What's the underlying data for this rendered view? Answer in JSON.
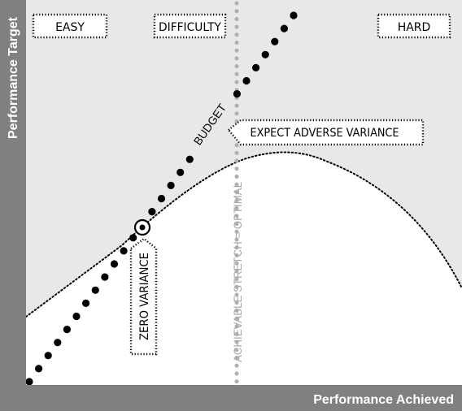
{
  "axes": {
    "y_label": "Performance Target",
    "x_label": "Performance Achieved"
  },
  "labels": {
    "easy": "EASY",
    "difficulty": "DIFFICULTY",
    "hard": "HARD",
    "budget": "BUDGET",
    "expect_adverse_variance": "EXPECT ADVERSE VARIANCE",
    "zero_variance": "ZERO VARIANCE",
    "achievable_stretch": "ACHIEVABLE STRETCH = OPTIMAL"
  },
  "colors": {
    "axis_band": "#808080",
    "plot_background": "#e8e8e8",
    "curve_fill": "#ffffff",
    "ink": "#000000",
    "optimal_line": "#b0b0b0"
  }
}
